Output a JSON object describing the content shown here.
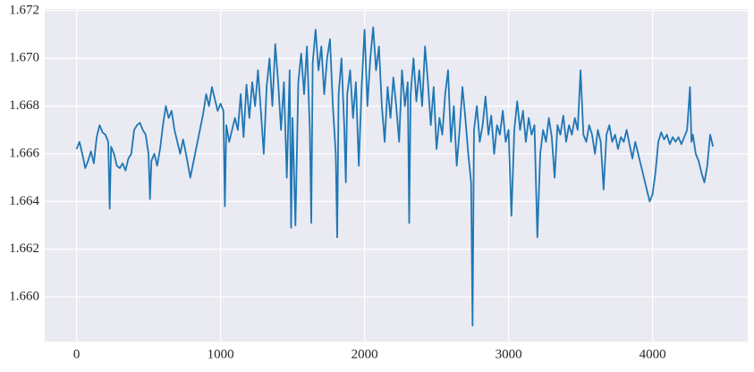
{
  "chart_data": {
    "type": "line",
    "xlim": [
      -221,
      4661
    ],
    "ylim": [
      1.65813,
      1.67207
    ],
    "xticks": [
      0,
      1000,
      2000,
      3000,
      4000
    ],
    "yticks": [
      {
        "value": 1.66,
        "label": "1.660"
      },
      {
        "value": 1.662,
        "label": "1.662"
      },
      {
        "value": 1.664,
        "label": "1.664"
      },
      {
        "value": 1.666,
        "label": "1.666"
      },
      {
        "value": 1.668,
        "label": "1.668"
      },
      {
        "value": 1.67,
        "label": "1.670"
      },
      {
        "value": 1.672,
        "label": "1.672"
      }
    ],
    "grid": true,
    "color": "#1f77b4",
    "x": [
      0,
      20,
      40,
      60,
      80,
      100,
      120,
      140,
      160,
      180,
      200,
      220,
      230,
      240,
      260,
      280,
      300,
      320,
      340,
      360,
      380,
      400,
      420,
      440,
      460,
      480,
      500,
      510,
      520,
      540,
      560,
      580,
      600,
      620,
      640,
      660,
      680,
      700,
      720,
      740,
      760,
      790,
      880,
      900,
      920,
      940,
      960,
      980,
      1000,
      1020,
      1030,
      1040,
      1060,
      1080,
      1100,
      1120,
      1140,
      1160,
      1180,
      1200,
      1220,
      1240,
      1260,
      1280,
      1300,
      1320,
      1340,
      1360,
      1380,
      1400,
      1420,
      1440,
      1460,
      1480,
      1490,
      1500,
      1520,
      1540,
      1560,
      1580,
      1600,
      1620,
      1630,
      1640,
      1660,
      1680,
      1700,
      1720,
      1740,
      1760,
      1780,
      1800,
      1810,
      1820,
      1840,
      1860,
      1870,
      1880,
      1900,
      1920,
      1940,
      1960,
      1980,
      2000,
      2020,
      2040,
      2060,
      2080,
      2100,
      2120,
      2140,
      2160,
      2180,
      2200,
      2220,
      2240,
      2260,
      2280,
      2300,
      2310,
      2320,
      2340,
      2360,
      2380,
      2400,
      2420,
      2440,
      2460,
      2480,
      2500,
      2520,
      2540,
      2560,
      2580,
      2600,
      2620,
      2640,
      2660,
      2680,
      2700,
      2720,
      2740,
      2750,
      2760,
      2780,
      2800,
      2820,
      2840,
      2860,
      2880,
      2900,
      2920,
      2940,
      2960,
      2980,
      3000,
      3020,
      3040,
      3060,
      3080,
      3100,
      3120,
      3140,
      3160,
      3180,
      3200,
      3220,
      3240,
      3260,
      3280,
      3300,
      3320,
      3340,
      3360,
      3380,
      3400,
      3420,
      3440,
      3460,
      3480,
      3500,
      3520,
      3540,
      3560,
      3580,
      3600,
      3620,
      3640,
      3660,
      3680,
      3700,
      3720,
      3740,
      3760,
      3780,
      3800,
      3820,
      3840,
      3860,
      3880,
      3900,
      3920,
      3940,
      3960,
      3980,
      4000,
      4020,
      4040,
      4060,
      4080,
      4100,
      4120,
      4140,
      4160,
      4180,
      4200,
      4220,
      4240,
      4260,
      4270,
      4280,
      4300,
      4320,
      4340,
      4360,
      4380,
      4400,
      4420
    ],
    "values": [
      1.6662,
      1.6665,
      1.666,
      1.6654,
      1.6657,
      1.6661,
      1.6656,
      1.6667,
      1.6672,
      1.6669,
      1.6668,
      1.6665,
      1.6637,
      1.6663,
      1.666,
      1.6655,
      1.6654,
      1.6656,
      1.6653,
      1.6658,
      1.666,
      1.667,
      1.6672,
      1.6673,
      1.667,
      1.6668,
      1.666,
      1.6641,
      1.6657,
      1.666,
      1.6655,
      1.6662,
      1.6672,
      1.668,
      1.6675,
      1.6678,
      1.667,
      1.6665,
      1.666,
      1.6666,
      1.666,
      1.665,
      1.6677,
      1.6685,
      1.668,
      1.6688,
      1.6683,
      1.6678,
      1.6681,
      1.6678,
      1.6638,
      1.6672,
      1.6665,
      1.667,
      1.6675,
      1.667,
      1.6685,
      1.6667,
      1.6689,
      1.6675,
      1.669,
      1.668,
      1.6695,
      1.6678,
      1.666,
      1.6688,
      1.67,
      1.668,
      1.6706,
      1.669,
      1.667,
      1.669,
      1.665,
      1.6695,
      1.6629,
      1.6675,
      1.663,
      1.669,
      1.6702,
      1.6685,
      1.6705,
      1.667,
      1.6631,
      1.6698,
      1.6712,
      1.6695,
      1.6705,
      1.6685,
      1.67,
      1.6708,
      1.668,
      1.666,
      1.6625,
      1.6685,
      1.67,
      1.667,
      1.6648,
      1.6685,
      1.6695,
      1.6675,
      1.669,
      1.6655,
      1.6688,
      1.6712,
      1.668,
      1.67,
      1.6713,
      1.6695,
      1.6705,
      1.668,
      1.6665,
      1.6688,
      1.6675,
      1.6692,
      1.668,
      1.6665,
      1.6695,
      1.668,
      1.669,
      1.6631,
      1.6685,
      1.67,
      1.6682,
      1.6695,
      1.668,
      1.6705,
      1.669,
      1.6672,
      1.6688,
      1.6662,
      1.6675,
      1.6668,
      1.6685,
      1.6695,
      1.6665,
      1.668,
      1.6655,
      1.667,
      1.6688,
      1.6675,
      1.666,
      1.6648,
      1.6588,
      1.667,
      1.668,
      1.6665,
      1.6672,
      1.6684,
      1.6668,
      1.6676,
      1.666,
      1.6672,
      1.6668,
      1.6678,
      1.6665,
      1.667,
      1.6634,
      1.667,
      1.6682,
      1.667,
      1.6678,
      1.6665,
      1.6675,
      1.6668,
      1.6672,
      1.6625,
      1.666,
      1.667,
      1.6665,
      1.6675,
      1.6667,
      1.665,
      1.6672,
      1.6668,
      1.6676,
      1.6665,
      1.6672,
      1.6668,
      1.6675,
      1.667,
      1.6695,
      1.6668,
      1.6665,
      1.6672,
      1.6668,
      1.666,
      1.667,
      1.6665,
      1.6645,
      1.6668,
      1.6672,
      1.6665,
      1.6668,
      1.6662,
      1.6667,
      1.6665,
      1.667,
      1.6664,
      1.6658,
      1.6665,
      1.666,
      1.6655,
      1.665,
      1.6645,
      1.664,
      1.6643,
      1.6652,
      1.6665,
      1.6669,
      1.6666,
      1.6668,
      1.6664,
      1.6667,
      1.6665,
      1.6667,
      1.6664,
      1.6667,
      1.667,
      1.6688,
      1.6665,
      1.6668,
      1.666,
      1.6657,
      1.6652,
      1.6648,
      1.6655,
      1.6668,
      1.6663
    ]
  }
}
